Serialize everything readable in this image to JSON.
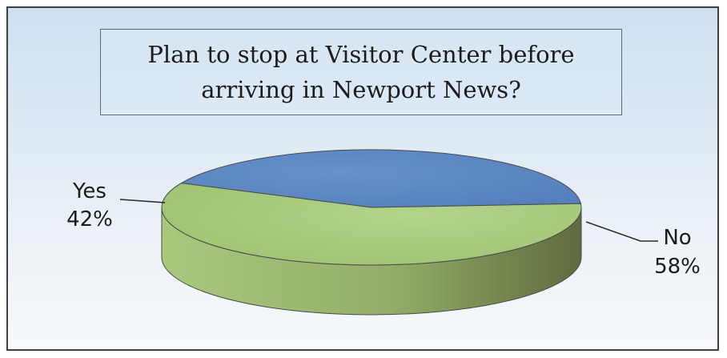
{
  "chart_data": {
    "type": "pie",
    "title": "Plan to stop at Visitor Center before arriving in Newport News?",
    "slices": [
      {
        "label": "Yes",
        "value": 42,
        "value_label": "42%",
        "color": "#5b87c4"
      },
      {
        "label": "No",
        "value": 58,
        "value_label": "58%",
        "color": "#a6c97a"
      }
    ],
    "style": "3d"
  }
}
